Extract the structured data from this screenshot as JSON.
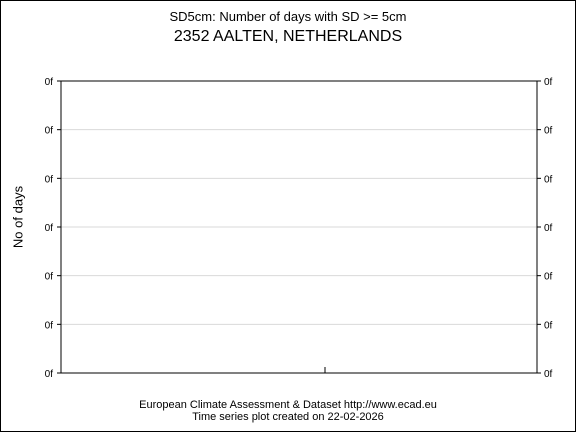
{
  "chart_data": {
    "type": "line",
    "title": "2352 AALTEN, NETHERLANDS",
    "subtitle": "SD5cm: Number of days with SD >= 5cm",
    "ylabel": "No of days",
    "y_tick_labels": [
      "0f",
      "0f",
      "0f",
      "0f",
      "0f",
      "0f",
      "0f"
    ],
    "y_tick_labels_right": [
      "0f",
      "0f",
      "0f",
      "0f",
      "0f",
      "0f",
      "0f"
    ],
    "x_tick_labels": [],
    "series": [],
    "grid": true
  },
  "footer": {
    "line1": "European Climate Assessment & Dataset  http://www.ecad.eu",
    "line2": "Time series plot created on 22-02-2026"
  }
}
